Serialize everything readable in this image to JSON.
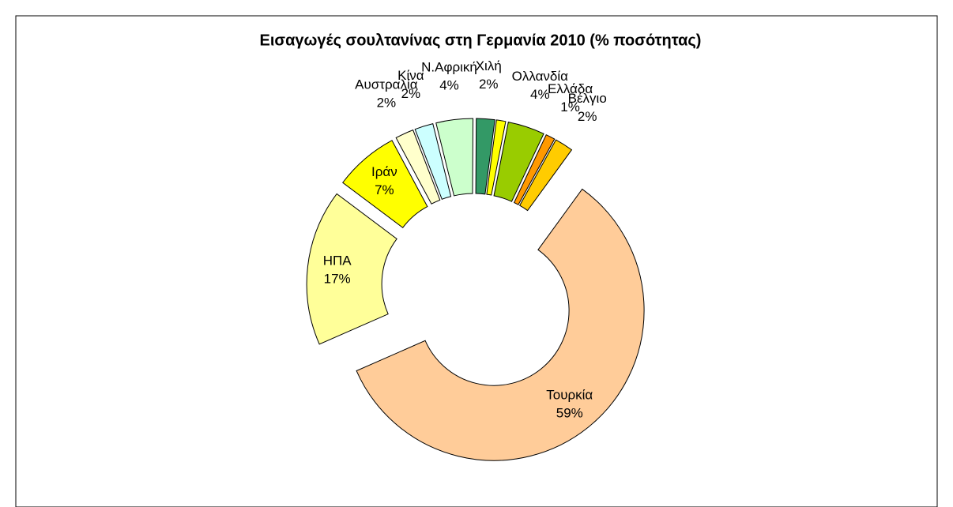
{
  "chart_data": {
    "type": "donut",
    "title": "Εισαγωγές σουλτανίνας στη Γερμανία 2010 (% ποσότητας)",
    "categories": [
      "Τουρκία",
      "ΗΠΑ",
      "Ιράν",
      "Αυστραλία",
      "Κίνα",
      "Ν.Αφρική",
      "Χιλή",
      null,
      "Ολλανδία",
      "Ελλάδα",
      "Βέλγιο"
    ],
    "values": [
      59,
      17,
      7,
      2,
      2,
      4,
      2,
      1,
      4,
      1,
      2
    ],
    "value_labels": [
      "59%",
      "17%",
      "7%",
      "2%",
      "2%",
      "4%",
      "2%",
      null,
      "4%",
      "1%",
      "2%"
    ],
    "colors": [
      "#ffcc99",
      "#ffff99",
      "#ffff00",
      "#ffffcc",
      "#ccffff",
      "#ccffcc",
      "#339966",
      "#ffff00",
      "#99cc00",
      "#ff9900",
      "#ffcc00"
    ]
  }
}
